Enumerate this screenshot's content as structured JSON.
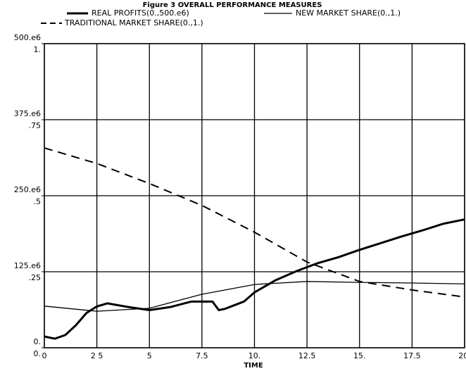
{
  "chart_data": {
    "type": "line",
    "title": "Figure 3    OVERALL PERFORMANCE MEASURES",
    "xlabel": "TIME",
    "xlim": [
      0,
      20
    ],
    "xticks": [
      0,
      {
        "value": 2.5,
        "label": "2 5"
      },
      5,
      7.5,
      {
        "value": 10,
        "label": "10."
      },
      12.5,
      {
        "value": 15,
        "label": "15."
      },
      17.5,
      {
        "value": 20,
        "label": "20."
      }
    ],
    "ylim": [
      0,
      500000000
    ],
    "yticks": [
      {
        "value": 0,
        "label": "0."
      },
      {
        "value": 125000000,
        "label": "125.e6"
      },
      {
        "value": 250000000,
        "label": "250.e6"
      },
      {
        "value": 375000000,
        "label": "375.e6"
      },
      {
        "value": 500000000,
        "label": "500.e6"
      }
    ],
    "y2lim": [
      0,
      1
    ],
    "y2ticks": [
      {
        "value": 0,
        "label": "0."
      },
      {
        "value": 0.25,
        "label": ".25"
      },
      {
        "value": 0.5,
        "label": ".5"
      },
      {
        "value": 0.75,
        "label": ".75"
      },
      {
        "value": 1,
        "label": "1."
      }
    ],
    "grid": true,
    "series": [
      {
        "name": "REAL PROFITS(0.,500.e6)",
        "color": "#000000",
        "width": 3,
        "dash": "none",
        "x": [
          0,
          0.5,
          1,
          1.5,
          2,
          2.5,
          3,
          4,
          5,
          6,
          7,
          8,
          8.3,
          8.6,
          9.5,
          10,
          11,
          12,
          13,
          14,
          15,
          16,
          17,
          18,
          19,
          20
        ],
        "values": [
          18500000,
          15000000,
          21000000,
          37000000,
          57000000,
          68000000,
          73000000,
          67000000,
          62000000,
          67000000,
          76000000,
          76000000,
          62000000,
          64000000,
          76000000,
          91000000,
          111000000,
          126000000,
          139000000,
          149000000,
          161000000,
          172000000,
          183000000,
          193000000,
          204000000,
          211000000
        ]
      },
      {
        "name": "NEW MARKET SHARE(0.,1.)",
        "color": "#000000",
        "width": 1.3,
        "dash": "none",
        "axis": "y2",
        "x": [
          0,
          2.5,
          5,
          7.5,
          10,
          12.5,
          15,
          17.5,
          20
        ],
        "values": [
          0.137,
          0.12,
          0.13,
          0.176,
          0.208,
          0.218,
          0.215,
          0.213,
          0.21
        ]
      },
      {
        "name": "TRADITIONAL MARKET SHARE(0.,1.)",
        "color": "#000000",
        "width": 2,
        "dash": "12 8",
        "axis": "y2",
        "x": [
          0,
          2.5,
          5,
          7.5,
          10,
          12.5,
          15,
          17.5,
          20
        ],
        "values": [
          0.657,
          0.606,
          0.54,
          0.468,
          0.38,
          0.282,
          0.218,
          0.19,
          0.167
        ]
      }
    ]
  }
}
